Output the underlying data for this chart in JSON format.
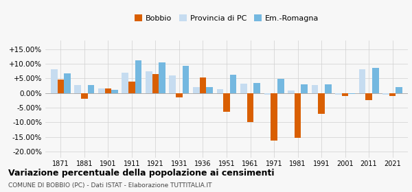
{
  "years": [
    1871,
    1881,
    1901,
    1911,
    1921,
    1931,
    1936,
    1951,
    1961,
    1971,
    1981,
    1991,
    2001,
    2011,
    2021
  ],
  "bobbio": [
    4.5,
    -2.0,
    1.5,
    4.0,
    6.5,
    -1.5,
    5.2,
    -6.5,
    -9.8,
    -16.2,
    -15.2,
    -7.0,
    -1.0,
    -2.5,
    -1.0
  ],
  "provincia_pc": [
    8.0,
    2.7,
    1.5,
    7.0,
    7.5,
    5.9,
    2.0,
    1.3,
    3.3,
    -0.5,
    0.8,
    2.7,
    -0.5,
    8.0,
    -0.5
  ],
  "emilia": [
    6.8,
    2.7,
    1.2,
    11.2,
    10.4,
    9.3,
    2.0,
    6.2,
    3.5,
    4.9,
    2.9,
    3.0,
    -0.4,
    8.7,
    2.0
  ],
  "bobbio_color": "#d95f02",
  "provincia_color": "#c6dcf0",
  "emilia_color": "#74b8e0",
  "legend_labels": [
    "Bobbio",
    "Provincia di PC",
    "Em.-Romagna"
  ],
  "title": "Variazione percentuale della popolazione ai censimenti",
  "subtitle": "COMUNE DI BOBBIO (PC) - Dati ISTAT - Elaborazione TUTTITALIA.IT",
  "ylim": [
    -22,
    18
  ],
  "yticks": [
    -20,
    -15,
    -10,
    -5,
    0,
    5,
    10,
    15
  ],
  "bar_width": 0.28,
  "background_color": "#f7f7f7",
  "grid_color": "#d0d0d0"
}
